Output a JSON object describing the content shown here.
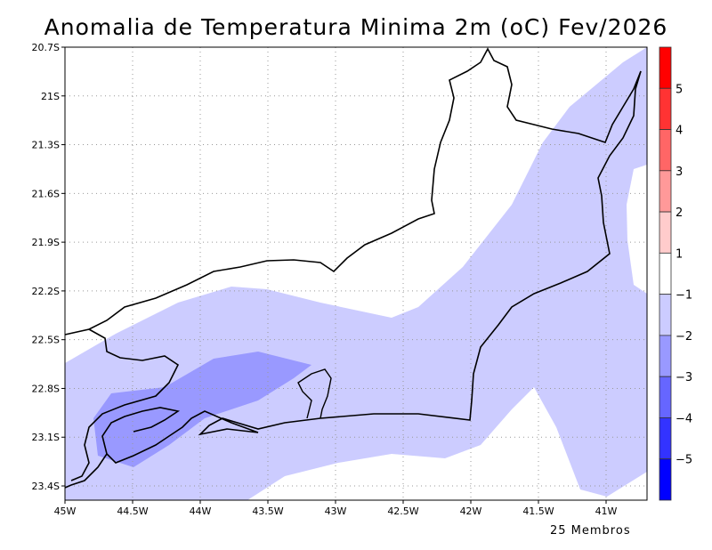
{
  "chart_data": {
    "type": "heatmap",
    "title": "Anomalia de Temperatura Minima 2m (oC) Fev/2026",
    "subtitle": "25 Membros",
    "xlim": [
      -45,
      -40.7
    ],
    "ylim": [
      -23.5,
      -20.7
    ],
    "x_ticks": [
      "45W",
      "44.5W",
      "44W",
      "43.5W",
      "43W",
      "42.5W",
      "42W",
      "41.5W",
      "41W"
    ],
    "y_ticks": [
      "20.7S",
      "21S",
      "21.3S",
      "21.6S",
      "21.9S",
      "22.2S",
      "22.5S",
      "22.8S",
      "23.1S",
      "23.4S"
    ],
    "grid": true,
    "colorbar": {
      "levels": [
        "-5",
        "-4",
        "-3",
        "-2",
        "-1",
        "1",
        "2",
        "3",
        "4",
        "5"
      ],
      "colors": [
        "#0000ff",
        "#3333ff",
        "#6666ff",
        "#9999ff",
        "#ccccff",
        "#ffffff",
        "#ffcccc",
        "#ff9999",
        "#ff6666",
        "#ff3333",
        "#ff0000"
      ]
    },
    "regions": [
      {
        "range": "-2 to -1",
        "color": "#ccccff",
        "area": "most of Rio de Janeiro state, coast and offshore"
      },
      {
        "range": "-3 to -2",
        "color": "#9999ff",
        "area": "southwest coast near Angra dos Reis / Ilha Grande"
      }
    ]
  }
}
